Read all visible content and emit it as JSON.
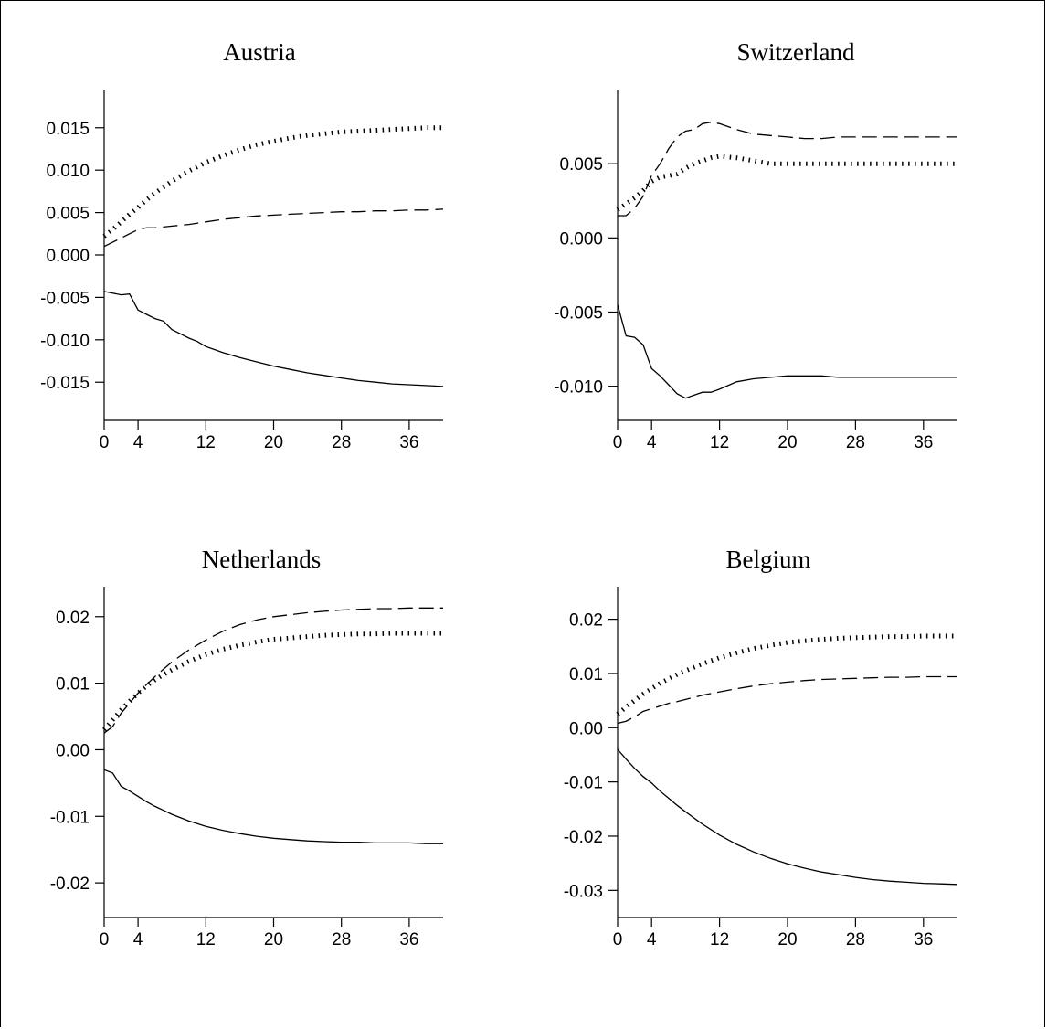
{
  "chart_data": [
    {
      "type": "line",
      "title": "Austria",
      "x_ticks": [
        0,
        4,
        12,
        20,
        28,
        36
      ],
      "y_ticks": [
        -0.015,
        -0.01,
        -0.005,
        0.0,
        0.005,
        0.01,
        0.015
      ],
      "y_tick_labels": [
        "-0.015",
        "-0.010",
        "-0.005",
        "0.000",
        "0.005",
        "0.010",
        "0.015"
      ],
      "xlim": [
        0,
        40
      ],
      "ylim": [
        -0.0195,
        0.0195
      ],
      "series": [
        {
          "style": "solid",
          "x": [
            0,
            1,
            2,
            3,
            4,
            5,
            6,
            7,
            8,
            9,
            10,
            11,
            12,
            14,
            16,
            18,
            20,
            22,
            24,
            26,
            28,
            30,
            32,
            34,
            36,
            38,
            40
          ],
          "y": [
            -0.0043,
            -0.0045,
            -0.0047,
            -0.0046,
            -0.0065,
            -0.007,
            -0.0075,
            -0.0078,
            -0.0088,
            -0.0093,
            -0.0098,
            -0.0102,
            -0.0108,
            -0.0115,
            -0.0121,
            -0.0126,
            -0.0131,
            -0.0135,
            -0.0139,
            -0.0142,
            -0.0145,
            -0.0148,
            -0.015,
            -0.0152,
            -0.0153,
            -0.0154,
            -0.0155
          ]
        },
        {
          "style": "dashed",
          "x": [
            0,
            1,
            2,
            3,
            4,
            5,
            6,
            7,
            8,
            10,
            12,
            14,
            16,
            18,
            20,
            22,
            24,
            26,
            28,
            30,
            32,
            34,
            36,
            38,
            40
          ],
          "y": [
            0.001,
            0.0015,
            0.002,
            0.0025,
            0.003,
            0.0032,
            0.0032,
            0.0033,
            0.0034,
            0.0036,
            0.0039,
            0.0042,
            0.0044,
            0.0046,
            0.0047,
            0.0048,
            0.0049,
            0.005,
            0.0051,
            0.0051,
            0.0052,
            0.0052,
            0.0053,
            0.0053,
            0.0054
          ]
        },
        {
          "style": "dotted",
          "x": [
            0,
            1,
            2,
            3,
            4,
            5,
            6,
            7,
            8,
            10,
            12,
            14,
            16,
            18,
            20,
            22,
            24,
            26,
            28,
            30,
            32,
            34,
            36,
            38,
            40
          ],
          "y": [
            0.0022,
            0.003,
            0.0039,
            0.0048,
            0.0056,
            0.0065,
            0.0073,
            0.008,
            0.0087,
            0.0099,
            0.0109,
            0.0117,
            0.0124,
            0.013,
            0.0134,
            0.0138,
            0.0141,
            0.0143,
            0.0145,
            0.0146,
            0.0147,
            0.0148,
            0.0149,
            0.015,
            0.015
          ]
        }
      ]
    },
    {
      "type": "line",
      "title": "Switzerland",
      "x_ticks": [
        0,
        4,
        12,
        20,
        28,
        36
      ],
      "y_ticks": [
        -0.01,
        -0.005,
        0.0,
        0.005
      ],
      "y_tick_labels": [
        "-0.010",
        "-0.005",
        "0.000",
        "0.005"
      ],
      "xlim": [
        0,
        40
      ],
      "ylim": [
        -0.0123,
        0.01
      ],
      "series": [
        {
          "style": "solid",
          "x": [
            0,
            1,
            2,
            3,
            4,
            5,
            6,
            7,
            8,
            9,
            10,
            11,
            12,
            14,
            16,
            18,
            20,
            22,
            24,
            26,
            28,
            30,
            32,
            34,
            36,
            38,
            40
          ],
          "y": [
            -0.0045,
            -0.0066,
            -0.0067,
            -0.0072,
            -0.0088,
            -0.0093,
            -0.0099,
            -0.0105,
            -0.0108,
            -0.0106,
            -0.0104,
            -0.0104,
            -0.0102,
            -0.0097,
            -0.0095,
            -0.0094,
            -0.0093,
            -0.0093,
            -0.0093,
            -0.0094,
            -0.0094,
            -0.0094,
            -0.0094,
            -0.0094,
            -0.0094,
            -0.0094,
            -0.0094
          ]
        },
        {
          "style": "dashed",
          "x": [
            0,
            1,
            2,
            3,
            4,
            5,
            6,
            7,
            8,
            9,
            10,
            11,
            12,
            14,
            16,
            18,
            20,
            22,
            24,
            26,
            28,
            30,
            32,
            34,
            36,
            38,
            40
          ],
          "y": [
            0.0015,
            0.0015,
            0.002,
            0.0028,
            0.0042,
            0.005,
            0.006,
            0.0068,
            0.0072,
            0.0073,
            0.0077,
            0.0078,
            0.0077,
            0.0073,
            0.007,
            0.0069,
            0.0068,
            0.0067,
            0.0067,
            0.0068,
            0.0068,
            0.0068,
            0.0068,
            0.0068,
            0.0068,
            0.0068,
            0.0068
          ]
        },
        {
          "style": "dotted",
          "x": [
            0,
            1,
            2,
            3,
            4,
            5,
            6,
            7,
            8,
            9,
            10,
            11,
            12,
            14,
            16,
            18,
            20,
            22,
            24,
            26,
            28,
            30,
            32,
            34,
            36,
            38,
            40
          ],
          "y": [
            0.0019,
            0.0023,
            0.0027,
            0.0032,
            0.0038,
            0.0041,
            0.0042,
            0.0043,
            0.0047,
            0.005,
            0.0052,
            0.0054,
            0.0055,
            0.0054,
            0.0052,
            0.005,
            0.005,
            0.005,
            0.005,
            0.005,
            0.005,
            0.005,
            0.005,
            0.005,
            0.005,
            0.005,
            0.005
          ]
        }
      ]
    },
    {
      "type": "line",
      "title": "Netherlands",
      "x_ticks": [
        0,
        4,
        12,
        20,
        28,
        36
      ],
      "y_ticks": [
        -0.02,
        -0.01,
        0.0,
        0.01,
        0.02
      ],
      "y_tick_labels": [
        "-0.02",
        "-0.01",
        "0.00",
        "0.01",
        "0.02"
      ],
      "xlim": [
        0,
        40
      ],
      "ylim": [
        -0.0252,
        0.0245
      ],
      "series": [
        {
          "style": "solid",
          "x": [
            0,
            1,
            2,
            3,
            4,
            5,
            6,
            7,
            8,
            10,
            12,
            14,
            16,
            18,
            20,
            22,
            24,
            26,
            28,
            30,
            32,
            34,
            36,
            38,
            40
          ],
          "y": [
            -0.003,
            -0.0035,
            -0.0055,
            -0.0062,
            -0.007,
            -0.0078,
            -0.0085,
            -0.0091,
            -0.0097,
            -0.0107,
            -0.0115,
            -0.0121,
            -0.0126,
            -0.013,
            -0.0133,
            -0.0135,
            -0.0137,
            -0.0138,
            -0.0139,
            -0.0139,
            -0.014,
            -0.014,
            -0.014,
            -0.0141,
            -0.0141
          ]
        },
        {
          "style": "dashed",
          "x": [
            0,
            1,
            2,
            3,
            4,
            5,
            6,
            7,
            8,
            10,
            12,
            14,
            16,
            18,
            20,
            22,
            24,
            26,
            28,
            30,
            32,
            34,
            36,
            38,
            40
          ],
          "y": [
            0.0025,
            0.0035,
            0.0055,
            0.007,
            0.0085,
            0.0098,
            0.011,
            0.0121,
            0.0132,
            0.015,
            0.0165,
            0.0178,
            0.0188,
            0.0195,
            0.02,
            0.0203,
            0.0206,
            0.0208,
            0.021,
            0.0211,
            0.0212,
            0.0212,
            0.0213,
            0.0213,
            0.0213
          ]
        },
        {
          "style": "dotted",
          "x": [
            0,
            1,
            2,
            3,
            4,
            5,
            6,
            7,
            8,
            10,
            12,
            14,
            16,
            18,
            20,
            22,
            24,
            26,
            28,
            30,
            32,
            34,
            36,
            38,
            40
          ],
          "y": [
            0.003,
            0.0045,
            0.006,
            0.0073,
            0.0085,
            0.0096,
            0.0105,
            0.0113,
            0.012,
            0.0133,
            0.0143,
            0.0151,
            0.0157,
            0.0162,
            0.0166,
            0.0168,
            0.017,
            0.0172,
            0.0173,
            0.0174,
            0.0174,
            0.0175,
            0.0175,
            0.0175,
            0.0175
          ]
        }
      ]
    },
    {
      "type": "line",
      "title": "Belgium",
      "x_ticks": [
        0,
        4,
        12,
        20,
        28,
        36
      ],
      "y_ticks": [
        -0.03,
        -0.02,
        -0.01,
        0.0,
        0.01,
        0.02
      ],
      "y_tick_labels": [
        "-0.03",
        "-0.02",
        "-0.01",
        "0.00",
        "0.01",
        "0.02"
      ],
      "xlim": [
        0,
        40
      ],
      "ylim": [
        -0.035,
        0.026
      ],
      "series": [
        {
          "style": "solid",
          "x": [
            0,
            1,
            2,
            3,
            4,
            5,
            6,
            7,
            8,
            10,
            12,
            14,
            16,
            18,
            20,
            22,
            24,
            26,
            28,
            30,
            32,
            34,
            36,
            38,
            40
          ],
          "y": [
            -0.004,
            -0.0058,
            -0.0075,
            -0.009,
            -0.0102,
            -0.0117,
            -0.013,
            -0.0143,
            -0.0155,
            -0.0178,
            -0.0198,
            -0.0215,
            -0.0229,
            -0.0241,
            -0.0251,
            -0.0259,
            -0.0266,
            -0.0271,
            -0.0276,
            -0.028,
            -0.0283,
            -0.0285,
            -0.0287,
            -0.0288,
            -0.0289
          ]
        },
        {
          "style": "dashed",
          "x": [
            0,
            1,
            2,
            3,
            4,
            5,
            6,
            7,
            8,
            10,
            12,
            14,
            16,
            18,
            20,
            22,
            24,
            26,
            28,
            30,
            32,
            34,
            36,
            38,
            40
          ],
          "y": [
            0.0008,
            0.0012,
            0.002,
            0.003,
            0.0035,
            0.004,
            0.0045,
            0.0048,
            0.0052,
            0.006,
            0.0066,
            0.0072,
            0.0077,
            0.0081,
            0.0084,
            0.0087,
            0.0089,
            0.009,
            0.0091,
            0.0092,
            0.0093,
            0.0093,
            0.0094,
            0.0094,
            0.0094
          ]
        },
        {
          "style": "dotted",
          "x": [
            0,
            1,
            2,
            3,
            4,
            5,
            6,
            7,
            8,
            10,
            12,
            14,
            16,
            18,
            20,
            22,
            24,
            26,
            28,
            30,
            32,
            34,
            36,
            38,
            40
          ],
          "y": [
            0.0025,
            0.0038,
            0.005,
            0.0062,
            0.0072,
            0.0082,
            0.009,
            0.0098,
            0.0105,
            0.0118,
            0.0129,
            0.0138,
            0.0146,
            0.0152,
            0.0157,
            0.016,
            0.0163,
            0.0165,
            0.0166,
            0.0167,
            0.0168,
            0.0168,
            0.0169,
            0.0169,
            0.0169
          ]
        }
      ]
    }
  ]
}
